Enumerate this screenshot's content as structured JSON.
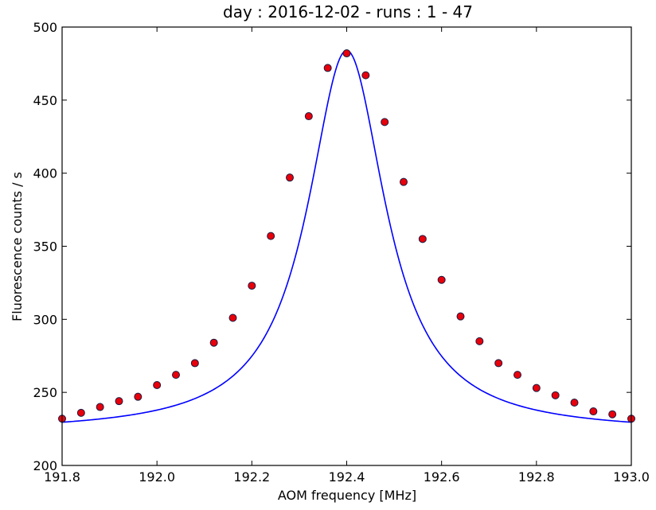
{
  "chart_data": {
    "type": "scatter",
    "title": "day : 2016-12-02 - runs : 1 - 47",
    "xlabel": "AOM frequency [MHz]",
    "ylabel": "Fluorescence counts / s",
    "xlim": [
      191.8,
      193.0
    ],
    "ylim": [
      200,
      500
    ],
    "xticks": [
      191.8,
      192.0,
      192.2,
      192.4,
      192.6,
      192.8,
      193.0
    ],
    "xtick_labels": [
      "191.8",
      "192.0",
      "192.2",
      "192.4",
      "192.6",
      "192.8",
      "193.0"
    ],
    "yticks": [
      200,
      250,
      300,
      350,
      400,
      450,
      500
    ],
    "ytick_labels": [
      "200",
      "250",
      "300",
      "350",
      "400",
      "450",
      "500"
    ],
    "grid": false,
    "series": [
      {
        "kind": "points",
        "color": "#e8000b",
        "edge_color": "#1a1a40",
        "x": [
          191.8,
          191.84,
          191.88,
          191.92,
          191.96,
          192.0,
          192.04,
          192.08,
          192.12,
          192.16,
          192.2,
          192.24,
          192.28,
          192.32,
          192.36,
          192.4,
          192.44,
          192.48,
          192.52,
          192.56,
          192.6,
          192.64,
          192.68,
          192.72,
          192.76,
          192.8,
          192.84,
          192.88,
          192.92,
          192.96,
          193.0
        ],
        "y": [
          232,
          236,
          240,
          244,
          247,
          255,
          262,
          270,
          284,
          301,
          323,
          357,
          397,
          439,
          472,
          482,
          467,
          435,
          394,
          355,
          327,
          302,
          285,
          270,
          262,
          253,
          248,
          243,
          237,
          235,
          232
        ]
      },
      {
        "kind": "fit-curve",
        "color": "#0000ff",
        "model": "lorentzian",
        "center": 192.4,
        "half_width": 0.1,
        "baseline": 222.5,
        "amplitude": 261.5
      }
    ]
  }
}
